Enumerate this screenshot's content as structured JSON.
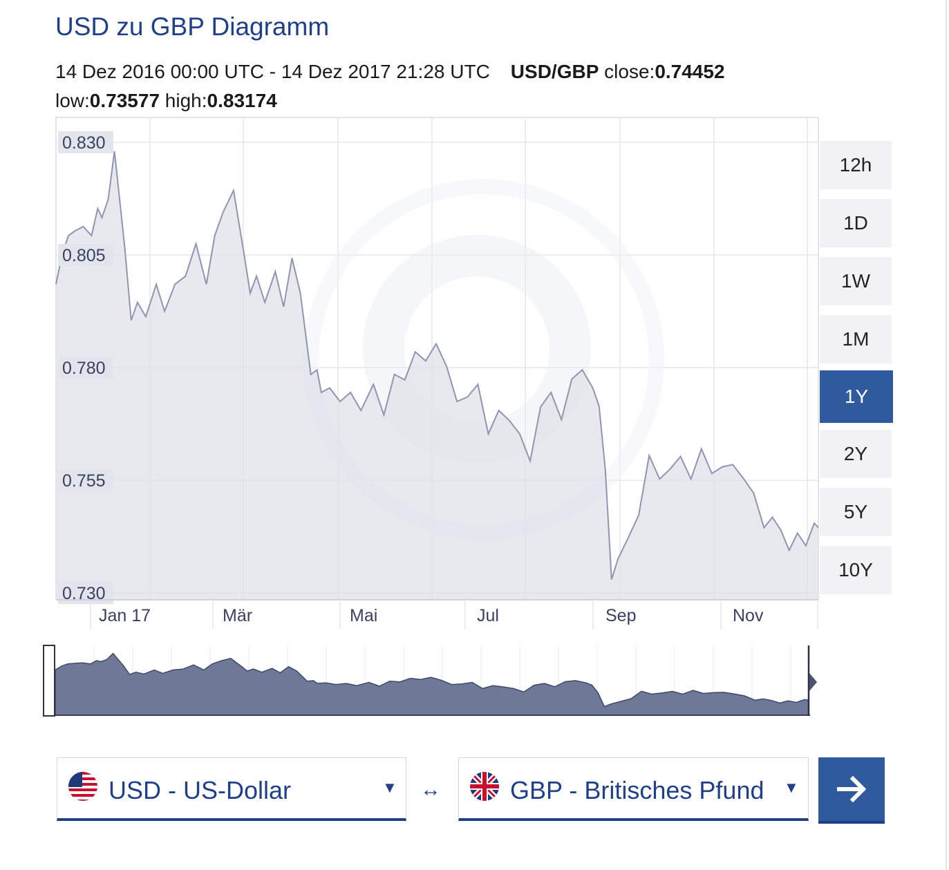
{
  "header": {
    "title": "USD zu GBP Diagramm",
    "range_text": "14 Dez 2016 00:00 UTC - 14 Dez 2017 21:28 UTC",
    "pair": "USD/GBP",
    "close_label": "close:",
    "close_value": "0.74452",
    "low_label": "low:",
    "low_value": "0.73577",
    "high_label": "high:",
    "high_value": "0.83174"
  },
  "periods": {
    "items": [
      "12h",
      "1D",
      "1W",
      "1M",
      "1Y",
      "2Y",
      "5Y",
      "10Y"
    ],
    "active": "1Y"
  },
  "chart_data": {
    "type": "area",
    "title": "",
    "xlabel": "",
    "ylabel": "",
    "ylim": [
      0.7285,
      0.8355
    ],
    "yticks": [
      "0.830",
      "0.805",
      "0.780",
      "0.755",
      "0.730"
    ],
    "xticks": [
      "Jan 17",
      "Mär",
      "Mai",
      "Jul",
      "Sep",
      "Nov"
    ],
    "grid": true,
    "series": [
      {
        "x": [
          "2016-12-14",
          "2016-12-17",
          "2016-12-20",
          "2016-12-23",
          "2016-12-27",
          "2016-12-31",
          "2017-01-03",
          "2017-01-05",
          "2017-01-08",
          "2017-01-11",
          "2017-01-14",
          "2017-01-16",
          "2017-01-19",
          "2017-01-22",
          "2017-01-26",
          "2017-01-31",
          "2017-02-04",
          "2017-02-09",
          "2017-02-14",
          "2017-02-19",
          "2017-02-24",
          "2017-02-28",
          "2017-03-04",
          "2017-03-09",
          "2017-03-14",
          "2017-03-17",
          "2017-03-20",
          "2017-03-24",
          "2017-03-29",
          "2017-04-02",
          "2017-04-06",
          "2017-04-10",
          "2017-04-15",
          "2017-04-18",
          "2017-04-20",
          "2017-04-24",
          "2017-04-29",
          "2017-05-04",
          "2017-05-09",
          "2017-05-15",
          "2017-05-20",
          "2017-05-25",
          "2017-05-30",
          "2017-06-04",
          "2017-06-09",
          "2017-06-14",
          "2017-06-19",
          "2017-06-24",
          "2017-06-29",
          "2017-07-04",
          "2017-07-09",
          "2017-07-14",
          "2017-07-19",
          "2017-07-24",
          "2017-07-29",
          "2017-08-03",
          "2017-08-08",
          "2017-08-13",
          "2017-08-18",
          "2017-08-23",
          "2017-08-28",
          "2017-08-31",
          "2017-09-03",
          "2017-09-06",
          "2017-09-09",
          "2017-09-14",
          "2017-09-19",
          "2017-09-24",
          "2017-09-29",
          "2017-10-04",
          "2017-10-09",
          "2017-10-14",
          "2017-10-19",
          "2017-10-24",
          "2017-10-29",
          "2017-11-03",
          "2017-11-08",
          "2017-11-13",
          "2017-11-18",
          "2017-11-22",
          "2017-11-26",
          "2017-11-30",
          "2017-12-04",
          "2017-12-08",
          "2017-12-12",
          "2017-12-14"
        ],
        "values": [
          0.7985,
          0.8053,
          0.8093,
          0.8103,
          0.8113,
          0.8093,
          0.8153,
          0.8133,
          0.8173,
          0.828,
          0.815,
          0.8063,
          0.7905,
          0.7945,
          0.7913,
          0.7985,
          0.7925,
          0.7985,
          0.8003,
          0.8075,
          0.7985,
          0.8093,
          0.8145,
          0.8193,
          0.8053,
          0.7965,
          0.8003,
          0.7945,
          0.8013,
          0.7935,
          0.8043,
          0.7965,
          0.7785,
          0.7795,
          0.7745,
          0.7755,
          0.7725,
          0.7745,
          0.7705,
          0.7763,
          0.7695,
          0.7785,
          0.7773,
          0.7835,
          0.7815,
          0.7853,
          0.7803,
          0.7725,
          0.7735,
          0.7763,
          0.7653,
          0.7705,
          0.7683,
          0.7653,
          0.7593,
          0.7713,
          0.7745,
          0.7685,
          0.7775,
          0.7795,
          0.7755,
          0.7715,
          0.7573,
          0.733,
          0.7375,
          0.7423,
          0.7473,
          0.7605,
          0.7553,
          0.7575,
          0.7603,
          0.7553,
          0.762,
          0.7565,
          0.758,
          0.7585,
          0.7555,
          0.7522,
          0.7445,
          0.7468,
          0.744,
          0.7395,
          0.7433,
          0.7405,
          0.7455,
          0.7445
        ]
      }
    ]
  },
  "converter": {
    "from_label": "USD - US-Dollar",
    "to_label": "GBP - Britisches Pfund",
    "swap_symbol": "↔",
    "go_symbol": "→"
  }
}
